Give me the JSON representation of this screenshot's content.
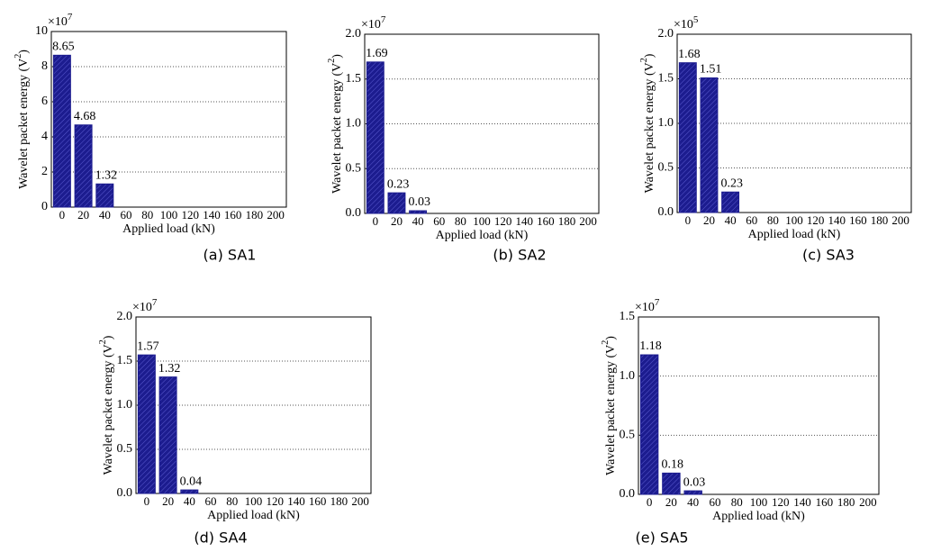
{
  "chart_data": [
    {
      "type": "bar",
      "caption": "(a)  SA1",
      "xlabel": "Applied load (kN)",
      "ylabel": "Wavelet packet energy (V",
      "ylabel_sup": "2",
      "ylabel_end": ")",
      "y_scale": "×10",
      "y_scale_exp": "7",
      "categories": [
        "0",
        "20",
        "40",
        "60",
        "80",
        "100",
        "120",
        "140",
        "160",
        "180",
        "200"
      ],
      "values": [
        8.65,
        4.68,
        1.32,
        null,
        null,
        null,
        null,
        null,
        null,
        null,
        null
      ],
      "color": "#1c1c8f",
      "ylim": [
        0,
        10
      ],
      "yticks": [
        0,
        2,
        4,
        6,
        8,
        10
      ],
      "grid": true
    },
    {
      "type": "bar",
      "caption": "(b)  SA2",
      "xlabel": "Applied load (kN)",
      "ylabel": "Wavelet packet energy (V",
      "ylabel_sup": "2",
      "ylabel_end": ")",
      "y_scale": "×10",
      "y_scale_exp": "7",
      "categories": [
        "0",
        "20",
        "40",
        "60",
        "80",
        "100",
        "120",
        "140",
        "160",
        "180",
        "200"
      ],
      "values": [
        1.69,
        0.23,
        0.03,
        null,
        null,
        null,
        null,
        null,
        null,
        null,
        null
      ],
      "color": "#1c1c8f",
      "ylim": [
        0,
        2
      ],
      "yticks": [
        {
          "value": 0,
          "label": "0.0"
        },
        0.5,
        {
          "value": 1,
          "label": "1.0"
        },
        1.5,
        {
          "value": 2,
          "label": "2.0"
        }
      ],
      "grid": true
    },
    {
      "type": "bar",
      "caption": "(c)  SA3",
      "xlabel": "Applied load (kN)",
      "ylabel": "Wavelet packet energy (V",
      "ylabel_sup": "2",
      "ylabel_end": ")",
      "y_scale": "×10",
      "y_scale_exp": "5",
      "categories": [
        "0",
        "20",
        "40",
        "60",
        "80",
        "100",
        "120",
        "140",
        "160",
        "180",
        "200"
      ],
      "values": [
        1.68,
        1.51,
        0.23,
        null,
        null,
        null,
        null,
        null,
        null,
        null,
        null
      ],
      "color": "#1c1c8f",
      "ylim": [
        0,
        2
      ],
      "yticks": [
        {
          "value": 0,
          "label": "0.0"
        },
        0.5,
        {
          "value": 1,
          "label": "1.0"
        },
        1.5,
        {
          "value": 2,
          "label": "2.0"
        }
      ],
      "grid": true
    },
    {
      "type": "bar",
      "caption": "(d)  SA4",
      "xlabel": "Applied load (kN)",
      "ylabel": "Wavelet packet energy (V",
      "ylabel_sup": "2",
      "ylabel_end": ")",
      "y_scale": "×10",
      "y_scale_exp": "7",
      "categories": [
        "0",
        "20",
        "40",
        "60",
        "80",
        "100",
        "120",
        "140",
        "160",
        "180",
        "200"
      ],
      "values": [
        1.57,
        1.32,
        0.04,
        null,
        null,
        null,
        null,
        null,
        null,
        null,
        null
      ],
      "color": "#1c1c8f",
      "ylim": [
        0,
        2
      ],
      "yticks": [
        {
          "value": 0,
          "label": "0.0"
        },
        0.5,
        {
          "value": 1,
          "label": "1.0"
        },
        1.5,
        {
          "value": 2,
          "label": "2.0"
        }
      ],
      "grid": true
    },
    {
      "type": "bar",
      "caption": "(e)  SA5",
      "xlabel": "Applied load (kN)",
      "ylabel": "Wavelet packet energy (V",
      "ylabel_sup": "2",
      "ylabel_end": ")",
      "y_scale": "×10",
      "y_scale_exp": "7",
      "categories": [
        "0",
        "20",
        "40",
        "60",
        "80",
        "100",
        "120",
        "140",
        "160",
        "180",
        "200"
      ],
      "values": [
        1.18,
        0.18,
        0.03,
        null,
        null,
        null,
        null,
        null,
        null,
        null,
        null
      ],
      "color": "#1c1c8f",
      "ylim": [
        0,
        1.5
      ],
      "yticks": [
        {
          "value": 0,
          "label": "0.0"
        },
        0.5,
        {
          "value": 1,
          "label": "1.0"
        },
        1.5
      ],
      "grid": true
    }
  ]
}
